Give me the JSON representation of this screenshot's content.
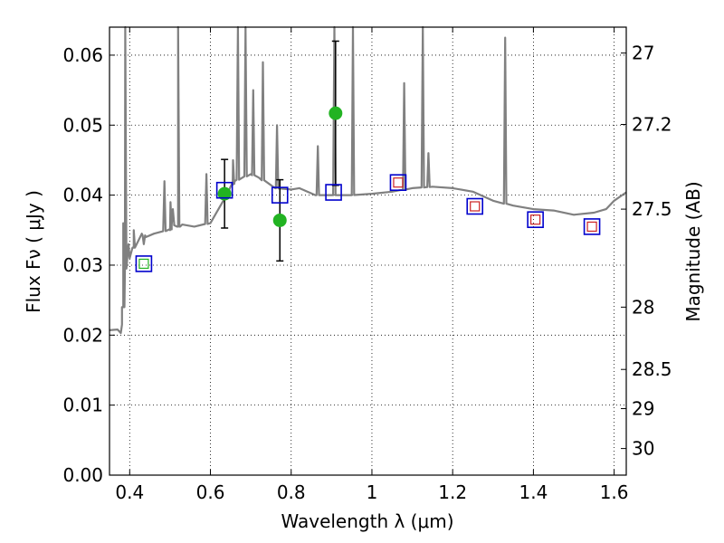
{
  "chart_data": {
    "type": "scatter",
    "xlabel": "Wavelength  λ (μm)",
    "ylabel": "Flux  Fν  ( μJy )",
    "y2label": "Magnitude (AB)",
    "xlim": [
      0.35,
      1.63
    ],
    "ylim": [
      0.0,
      0.064
    ],
    "grid": true,
    "x_ticks": [
      0.4,
      0.6,
      0.8,
      1.0,
      1.2,
      1.4,
      1.6
    ],
    "x_tick_labels": [
      "0.4",
      "0.6",
      "0.8",
      "1",
      "1.2",
      "1.4",
      "1.6"
    ],
    "y_ticks": [
      0.0,
      0.01,
      0.02,
      0.03,
      0.04,
      0.05,
      0.06
    ],
    "y_tick_labels": [
      "0.00",
      "0.01",
      "0.02",
      "0.03",
      "0.04",
      "0.05",
      "0.06"
    ],
    "y2_ticks": [
      {
        "label": "27",
        "flux": 0.0603
      },
      {
        "label": "27.2",
        "flux": 0.0501
      },
      {
        "label": "27.5",
        "flux": 0.038
      },
      {
        "label": "28",
        "flux": 0.024
      },
      {
        "label": "28.5",
        "flux": 0.0151
      },
      {
        "label": "29",
        "flux": 0.0095
      },
      {
        "label": "30",
        "flux": 0.0038
      }
    ],
    "model_spectrum": {
      "color": "#808080",
      "x": [
        0.35,
        0.37,
        0.378,
        0.381,
        0.384,
        0.388,
        0.392,
        0.397,
        0.4,
        0.41,
        0.42,
        0.43,
        0.44,
        0.46,
        0.48,
        0.5,
        0.51,
        0.52,
        0.525,
        0.53,
        0.56,
        0.6,
        0.62,
        0.64,
        0.655,
        0.66,
        0.7,
        0.72,
        0.76,
        0.8,
        0.82,
        0.86,
        0.9,
        0.95,
        1.0,
        1.05,
        1.1,
        1.15,
        1.2,
        1.25,
        1.3,
        1.35,
        1.4,
        1.45,
        1.5,
        1.55,
        1.58,
        1.6,
        1.63
      ],
      "y": [
        0.0207,
        0.0208,
        0.0203,
        0.0215,
        0.024,
        0.029,
        0.031,
        0.033,
        0.031,
        0.0325,
        0.0333,
        0.0345,
        0.034,
        0.0345,
        0.0348,
        0.035,
        0.036,
        0.0355,
        0.0355,
        0.0358,
        0.0355,
        0.036,
        0.038,
        0.04,
        0.0415,
        0.042,
        0.043,
        0.0425,
        0.041,
        0.0408,
        0.041,
        0.04,
        0.04,
        0.04,
        0.0402,
        0.0405,
        0.041,
        0.0412,
        0.041,
        0.0405,
        0.0392,
        0.0385,
        0.038,
        0.0378,
        0.0372,
        0.0375,
        0.038,
        0.0392,
        0.0404
      ]
    },
    "emission_lines": [
      {
        "x": 0.384,
        "peak": 0.036
      },
      {
        "x": 0.389,
        "peak": 0.064
      },
      {
        "x": 0.41,
        "peak": 0.035
      },
      {
        "x": 0.435,
        "peak": 0.033
      },
      {
        "x": 0.486,
        "peak": 0.042
      },
      {
        "x": 0.501,
        "peak": 0.039
      },
      {
        "x": 0.507,
        "peak": 0.038
      },
      {
        "x": 0.52,
        "peak": 0.064
      },
      {
        "x": 0.59,
        "peak": 0.043
      },
      {
        "x": 0.656,
        "peak": 0.045
      },
      {
        "x": 0.668,
        "peak": 0.064
      },
      {
        "x": 0.687,
        "peak": 0.064
      },
      {
        "x": 0.706,
        "peak": 0.055
      },
      {
        "x": 0.73,
        "peak": 0.059
      },
      {
        "x": 0.765,
        "peak": 0.05
      },
      {
        "x": 0.866,
        "peak": 0.047
      },
      {
        "x": 0.907,
        "peak": 0.064
      },
      {
        "x": 0.953,
        "peak": 0.064
      },
      {
        "x": 1.08,
        "peak": 0.056
      },
      {
        "x": 1.126,
        "peak": 0.064
      },
      {
        "x": 1.14,
        "peak": 0.046
      },
      {
        "x": 1.33,
        "peak": 0.0625
      }
    ],
    "series": [
      {
        "name": "",
        "marker": "filled-circle",
        "color": "#22b322",
        "x": [
          0.635,
          0.772,
          0.91
        ],
        "y": [
          0.0402,
          0.0364,
          0.0517
        ],
        "yerr": [
          0.0049,
          0.0058,
          0.0103
        ]
      },
      {
        "name": "",
        "marker": "open-square",
        "color": "#0000cc",
        "x": [
          0.435,
          0.635,
          0.772,
          0.905,
          1.065,
          1.255,
          1.405,
          1.545
        ],
        "y": [
          0.0302,
          0.0407,
          0.04,
          0.0404,
          0.0418,
          0.0384,
          0.0365,
          0.0355
        ]
      },
      {
        "name": "",
        "marker": "small-open-square",
        "colors": [
          "#22b322",
          "#cc2222",
          "#cc2222",
          "#cc2222",
          "#cc2222"
        ],
        "x": [
          0.435,
          1.065,
          1.255,
          1.405,
          1.545
        ],
        "y": [
          0.0302,
          0.0418,
          0.0384,
          0.0365,
          0.0355
        ]
      }
    ]
  }
}
